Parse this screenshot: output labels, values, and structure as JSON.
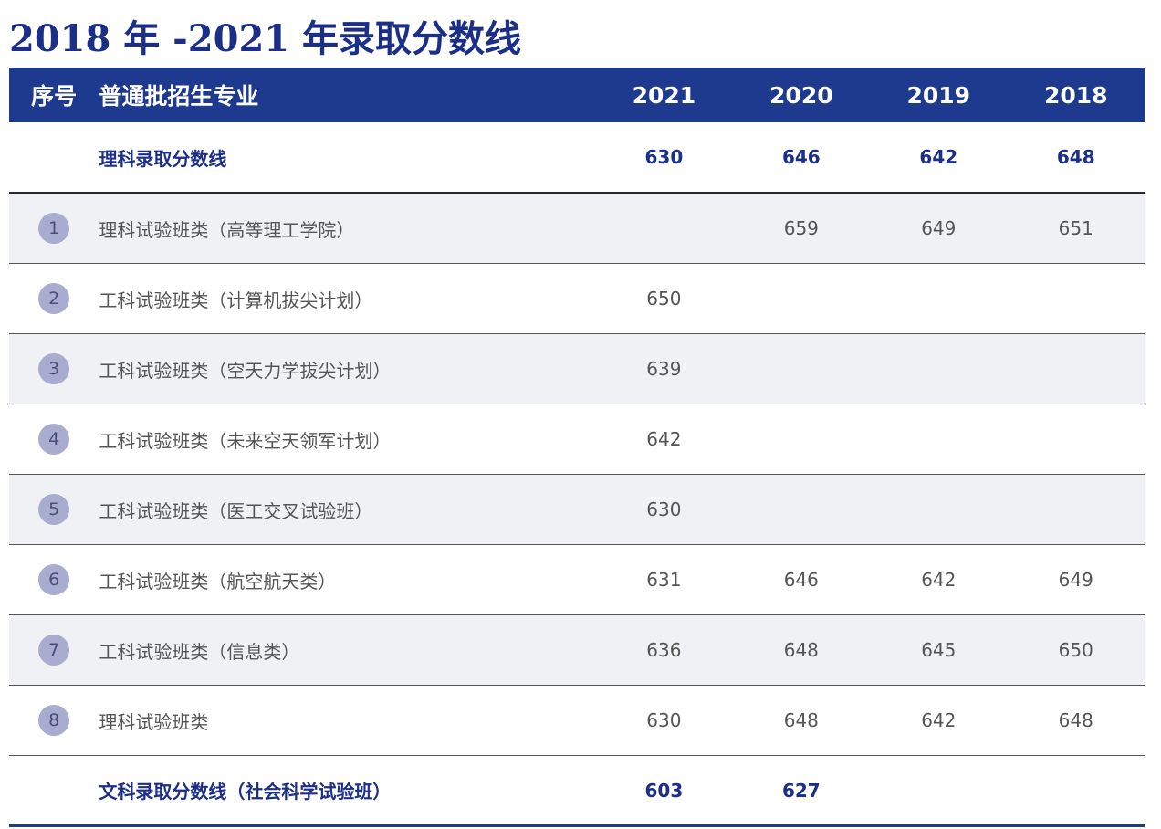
{
  "title": "2018 年 -2021 年录取分数线",
  "header": {
    "index": "序号",
    "major": "普通批招生专业",
    "years": [
      "2021",
      "2020",
      "2019",
      "2018"
    ]
  },
  "science_line": {
    "label": "理科录取分数线",
    "scores": [
      "630",
      "646",
      "642",
      "648"
    ]
  },
  "rows": [
    {
      "index": "1",
      "major": "理科试验班类（高等理工学院）",
      "scores": [
        "",
        "659",
        "649",
        "651"
      ]
    },
    {
      "index": "2",
      "major": "工科试验班类（计算机拔尖计划）",
      "scores": [
        "650",
        "",
        "",
        ""
      ]
    },
    {
      "index": "3",
      "major": "工科试验班类（空天力学拔尖计划）",
      "scores": [
        "639",
        "",
        "",
        ""
      ]
    },
    {
      "index": "4",
      "major": "工科试验班类（未来空天领军计划）",
      "scores": [
        "642",
        "",
        "",
        ""
      ]
    },
    {
      "index": "5",
      "major": "工科试验班类（医工交叉试验班）",
      "scores": [
        "630",
        "",
        "",
        ""
      ]
    },
    {
      "index": "6",
      "major": "工科试验班类（航空航天类）",
      "scores": [
        "631",
        "646",
        "642",
        "649"
      ]
    },
    {
      "index": "7",
      "major": "工科试验班类（信息类）",
      "scores": [
        "636",
        "648",
        "645",
        "650"
      ]
    },
    {
      "index": "8",
      "major": "理科试验班类",
      "scores": [
        "630",
        "648",
        "642",
        "648"
      ]
    }
  ],
  "arts_line": {
    "label": "文科录取分数线（社会科学试验班）",
    "scores": [
      "603",
      "627",
      "",
      ""
    ]
  },
  "colors": {
    "title": "#1c2f88",
    "header_bg": "#1e3a8f",
    "index_circle": "#a8accf",
    "alt_row": "#f0f1f4"
  }
}
